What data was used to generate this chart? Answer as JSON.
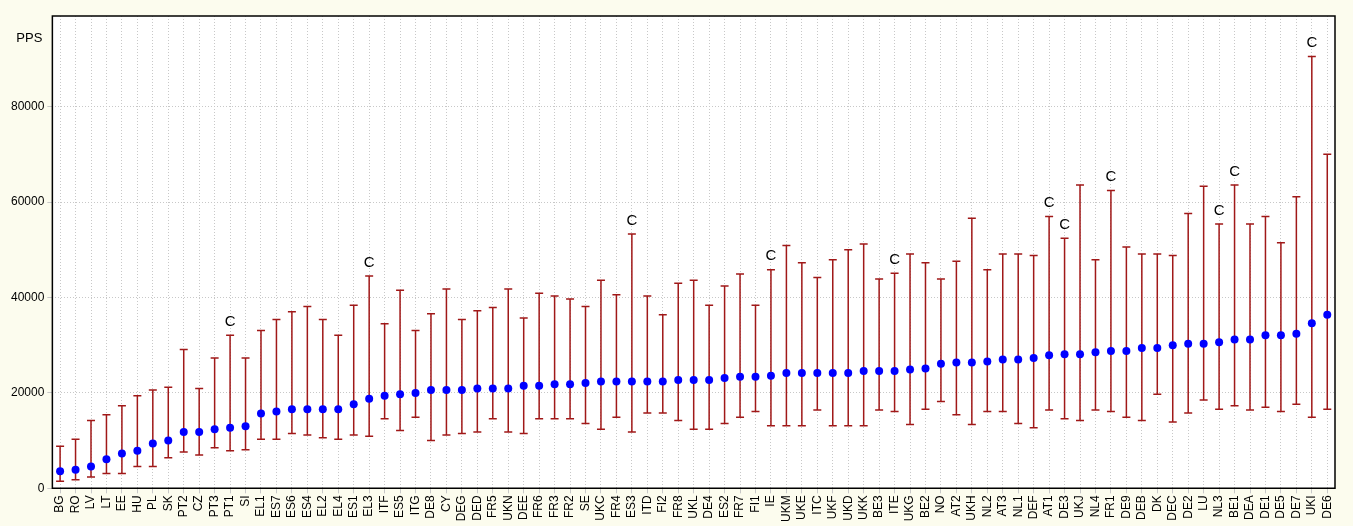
{
  "chart_data": {
    "type": "scatter",
    "ylabel": "PPS",
    "categories": [
      "BG",
      "RO",
      "LV",
      "LT",
      "EE",
      "HU",
      "PL",
      "SK",
      "PT2",
      "CZ",
      "PT3",
      "PT1",
      "SI",
      "EL1",
      "ES7",
      "ES6",
      "ES4",
      "EL2",
      "EL4",
      "ES1",
      "EL3",
      "ITF",
      "ES5",
      "ITG",
      "DE8",
      "CY",
      "DEG",
      "DED",
      "FR5",
      "UKN",
      "DEE",
      "FR6",
      "FR3",
      "FR2",
      "SE",
      "UKC",
      "FR4",
      "ES3",
      "ITD",
      "FI2",
      "FR8",
      "UKL",
      "DE4",
      "ES2",
      "FR7",
      "FI1",
      "IE",
      "UKM",
      "UKE",
      "ITC",
      "UKF",
      "UKD",
      "UKK",
      "BE3",
      "ITE",
      "UKG",
      "BE2",
      "NO",
      "AT2",
      "UKH",
      "NL2",
      "AT3",
      "NL1",
      "DEF",
      "AT1",
      "DE3",
      "UKJ",
      "NL4",
      "FR1",
      "DE9",
      "DEB",
      "DK",
      "DEC",
      "DE2",
      "LU",
      "NL3",
      "BE1",
      "DEA",
      "DE1",
      "DE5",
      "DE7",
      "UKI",
      "DE6"
    ],
    "values": [
      3600,
      3900,
      4600,
      6100,
      7300,
      7900,
      9400,
      10000,
      11800,
      11800,
      12400,
      12700,
      13000,
      15700,
      16100,
      16600,
      16600,
      16600,
      16600,
      17600,
      18800,
      19400,
      19700,
      20000,
      20600,
      20600,
      20600,
      20900,
      20900,
      20900,
      21500,
      21500,
      21800,
      21800,
      22100,
      22400,
      22400,
      22400,
      22400,
      22400,
      22700,
      22700,
      22700,
      23100,
      23400,
      23400,
      23600,
      24200,
      24200,
      24200,
      24200,
      24200,
      24600,
      24600,
      24600,
      24900,
      25100,
      26100,
      26400,
      26400,
      26600,
      27000,
      27000,
      27300,
      27900,
      28100,
      28100,
      28500,
      28800,
      28800,
      29400,
      29400,
      30000,
      30300,
      30300,
      30600,
      31200,
      31200,
      32100,
      32100,
      32400,
      34600,
      36400
    ],
    "errors": [
      [
        1500,
        8800
      ],
      [
        1800,
        10300
      ],
      [
        2400,
        14200
      ],
      [
        3100,
        15400
      ],
      [
        3100,
        17300
      ],
      [
        4600,
        19400
      ],
      [
        4600,
        20600
      ],
      [
        6400,
        21200
      ],
      [
        7600,
        29100
      ],
      [
        7000,
        20900
      ],
      [
        8500,
        27300
      ],
      [
        7900,
        32100
      ],
      [
        8100,
        27300
      ],
      [
        10300,
        33100
      ],
      [
        10300,
        35400
      ],
      [
        11500,
        37000
      ],
      [
        11200,
        38100
      ],
      [
        10600,
        35400
      ],
      [
        10300,
        32100
      ],
      [
        11200,
        38400
      ],
      [
        10900,
        44500
      ],
      [
        14600,
        34500
      ],
      [
        12100,
        41500
      ],
      [
        14900,
        33100
      ],
      [
        10000,
        36600
      ],
      [
        11200,
        41800
      ],
      [
        11500,
        35400
      ],
      [
        11800,
        37200
      ],
      [
        14600,
        37900
      ],
      [
        11800,
        41800
      ],
      [
        11500,
        35700
      ],
      [
        14600,
        40900
      ],
      [
        14600,
        40300
      ],
      [
        14600,
        39700
      ],
      [
        13600,
        38100
      ],
      [
        12400,
        43600
      ],
      [
        14900,
        40600
      ],
      [
        11800,
        53300
      ],
      [
        15800,
        40300
      ],
      [
        15800,
        36400
      ],
      [
        14200,
        43000
      ],
      [
        12400,
        43600
      ],
      [
        12400,
        38400
      ],
      [
        13600,
        42400
      ],
      [
        14900,
        44900
      ],
      [
        16100,
        38400
      ],
      [
        13100,
        45800
      ],
      [
        13100,
        50900
      ],
      [
        13100,
        47300
      ],
      [
        16400,
        44200
      ],
      [
        13100,
        47900
      ],
      [
        13100,
        50000
      ],
      [
        13100,
        51200
      ],
      [
        16400,
        43900
      ],
      [
        16100,
        45100
      ],
      [
        13400,
        49100
      ],
      [
        16600,
        47300
      ],
      [
        18200,
        43900
      ],
      [
        15400,
        47600
      ],
      [
        13400,
        56600
      ],
      [
        16100,
        45800
      ],
      [
        16100,
        49100
      ],
      [
        13600,
        49100
      ],
      [
        12700,
        48800
      ],
      [
        16400,
        57000
      ],
      [
        14600,
        52400
      ],
      [
        14200,
        63600
      ],
      [
        16400,
        47900
      ],
      [
        16100,
        62400
      ],
      [
        14900,
        50600
      ],
      [
        14200,
        49100
      ],
      [
        19700,
        49100
      ],
      [
        13900,
        48800
      ],
      [
        15800,
        57600
      ],
      [
        18500,
        63300
      ],
      [
        16600,
        55400
      ],
      [
        17300,
        63600
      ],
      [
        16400,
        55400
      ],
      [
        17000,
        57000
      ],
      [
        16100,
        51500
      ],
      [
        17600,
        61100
      ],
      [
        14900,
        90500
      ],
      [
        16600,
        70000
      ]
    ],
    "color": "#0000ff",
    "marker": "circle",
    "ylim": [
      0,
      99000
    ],
    "yticks": [
      0,
      20000,
      40000,
      60000,
      80000
    ],
    "grid": true,
    "legend": false,
    "annotations": [
      {
        "text": "C",
        "x": "PT1",
        "y": 32100
      },
      {
        "text": "C",
        "x": "EL3",
        "y": 44500
      },
      {
        "text": "C",
        "x": "ES3",
        "y": 53300
      },
      {
        "text": "C",
        "x": "IE",
        "y": 45800
      },
      {
        "text": "C",
        "x": "ITE",
        "y": 45100
      },
      {
        "text": "C",
        "x": "AT1",
        "y": 57000
      },
      {
        "text": "C",
        "x": "DE3",
        "y": 52400
      },
      {
        "text": "C",
        "x": "FR1",
        "y": 62400
      },
      {
        "text": "C",
        "x": "NL3",
        "y": 55400
      },
      {
        "text": "C",
        "x": "BE1",
        "y": 63600
      },
      {
        "text": "C",
        "x": "UKI",
        "y": 90500
      }
    ]
  }
}
